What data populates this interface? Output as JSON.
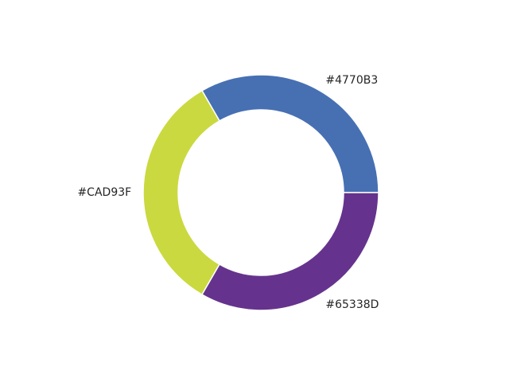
{
  "chart_data": {
    "type": "pie",
    "variant": "donut",
    "title": "",
    "start_angle_deg": 0,
    "direction": "counterclockwise",
    "slices": [
      {
        "label": "#4770B3",
        "value": 1,
        "color": "#4770B3"
      },
      {
        "label": "#CAD93F",
        "value": 1,
        "color": "#CAD93F"
      },
      {
        "label": "#65338D",
        "value": 1,
        "color": "#65338D"
      }
    ],
    "edge_color": "#ffffff",
    "legend": "none",
    "grid": false
  }
}
